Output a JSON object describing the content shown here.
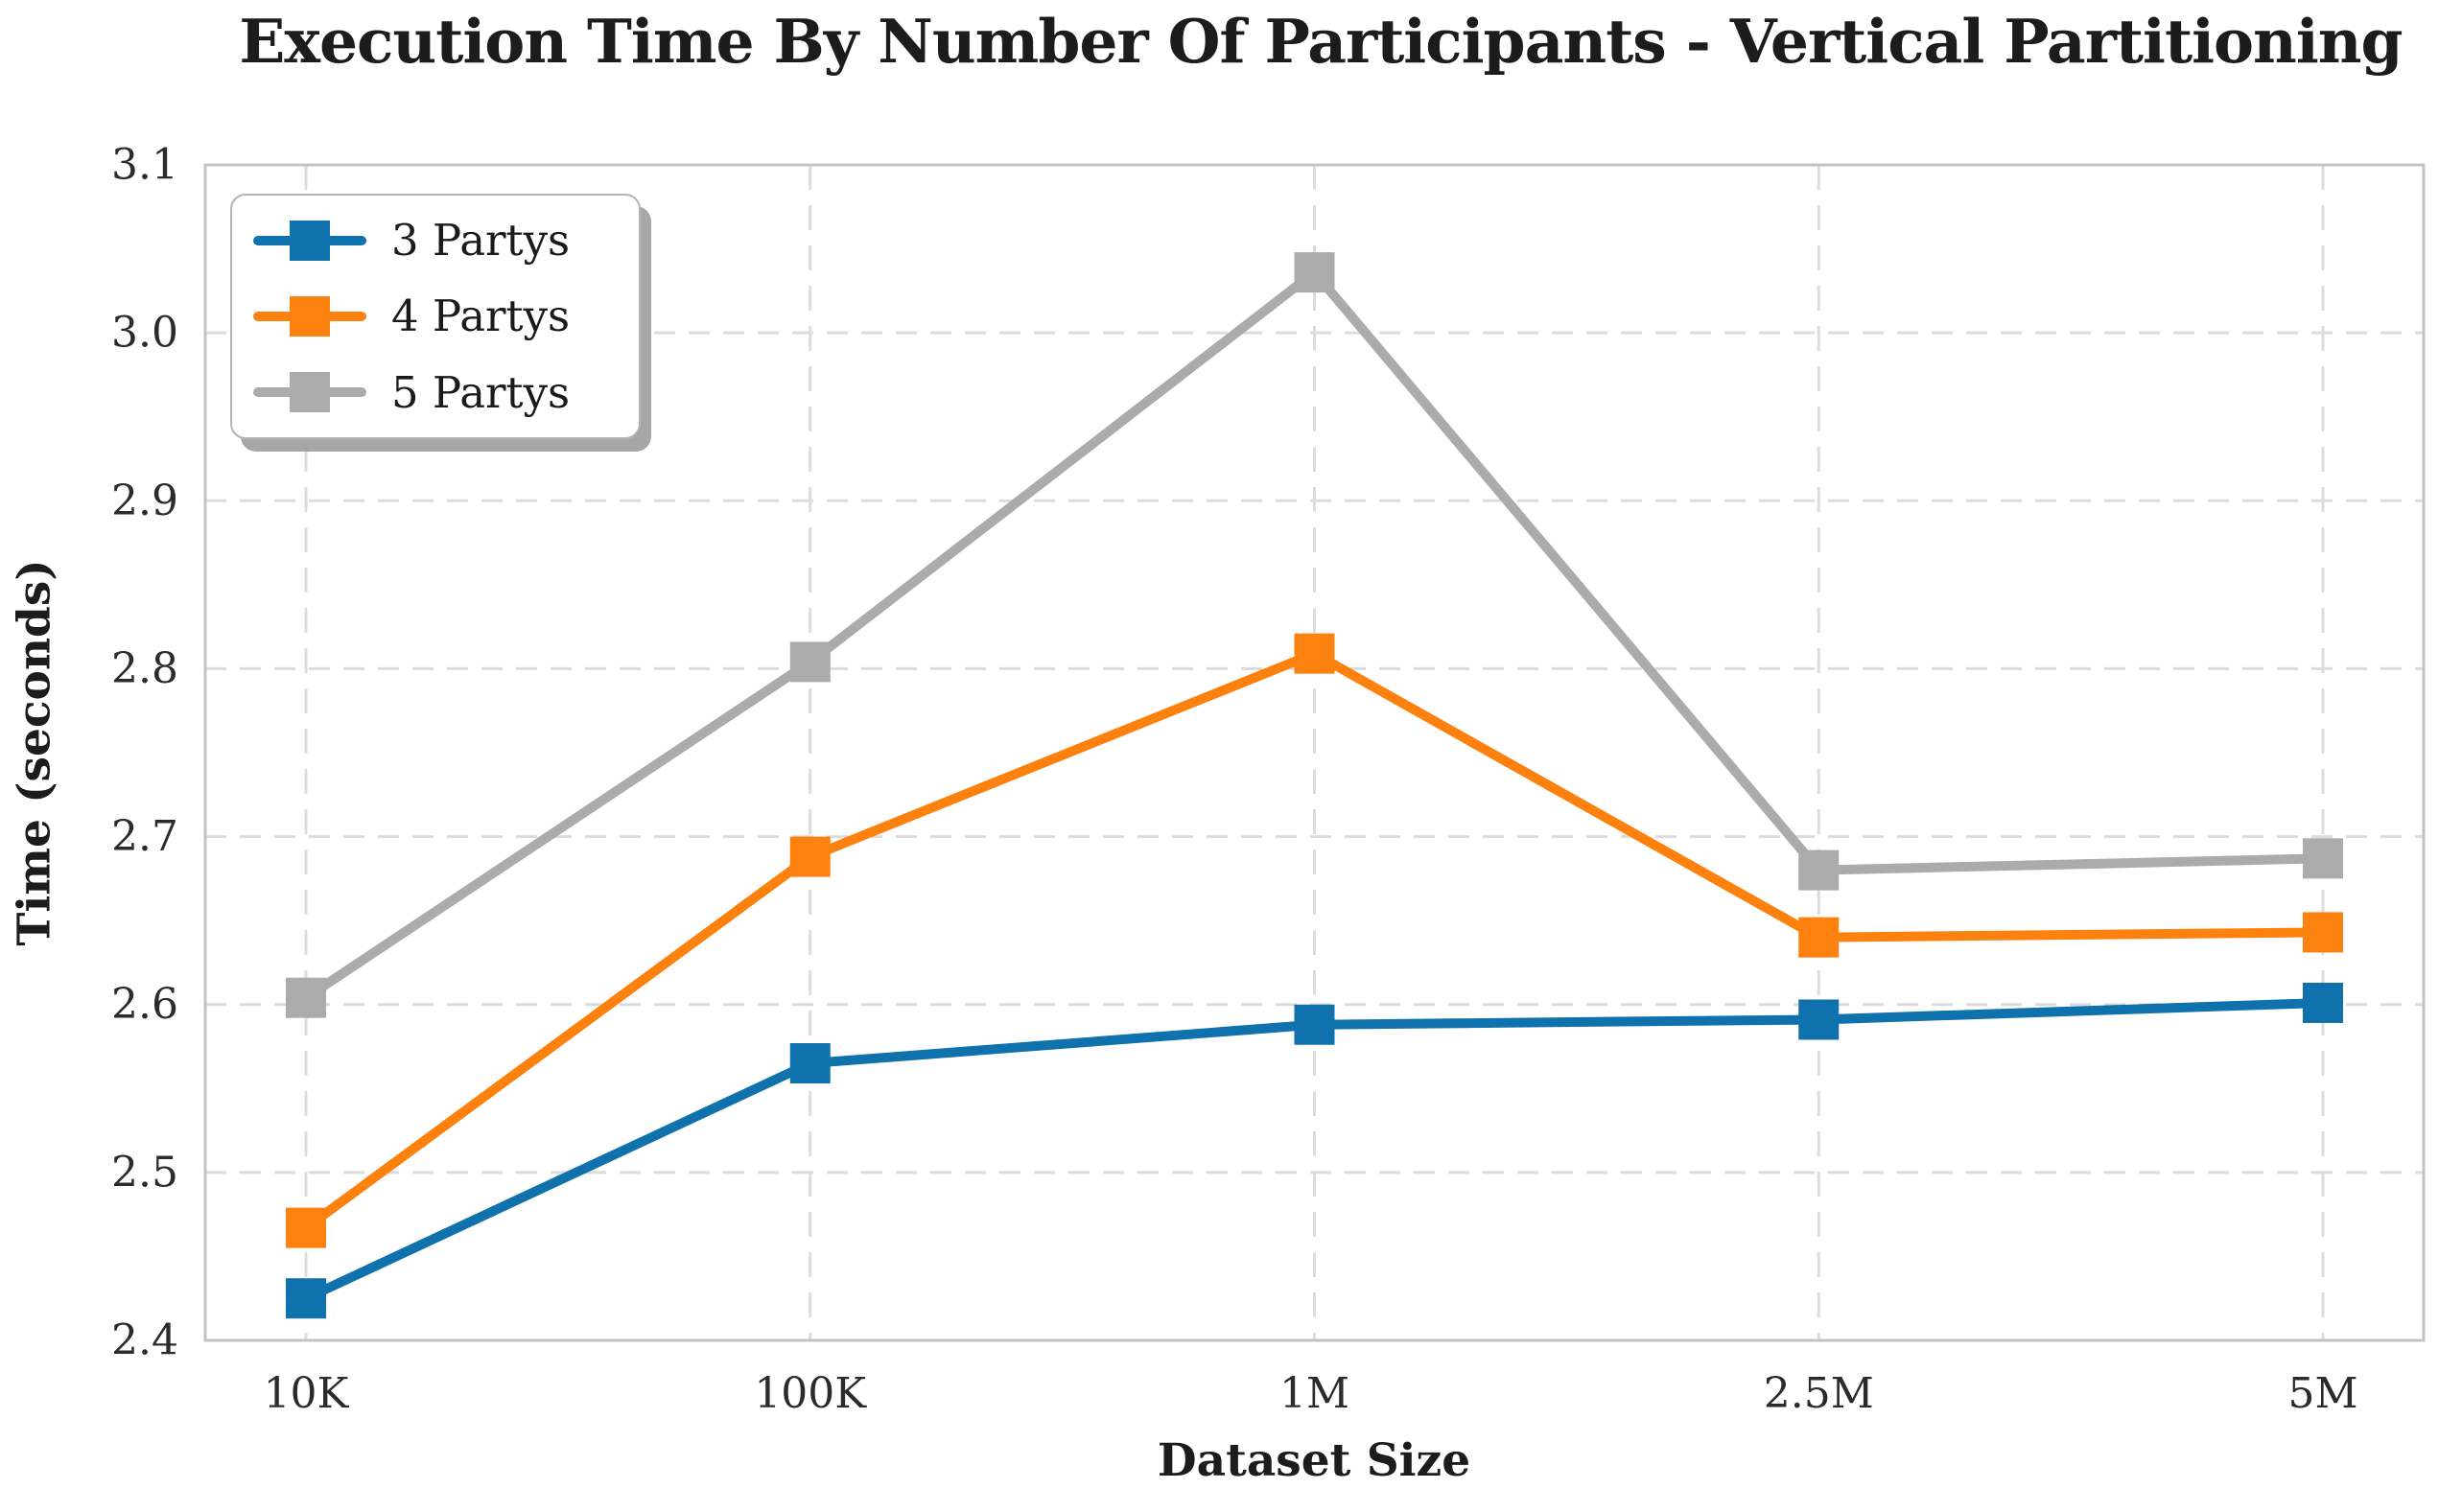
{
  "chart_data": {
    "type": "line",
    "title": "Execution Time By Number Of Participants - Vertical Partitioning",
    "xlabel": "Dataset Size",
    "ylabel": "Time (seconds)",
    "categories": [
      "10K",
      "100K",
      "1M",
      "2.5M",
      "5M"
    ],
    "series": [
      {
        "name": "3 Partys",
        "color": "#0f72ad",
        "values": [
          2.425,
          2.565,
          2.588,
          2.591,
          2.601
        ]
      },
      {
        "name": "4 Partys",
        "color": "#fd810e",
        "values": [
          2.467,
          2.688,
          2.809,
          2.64,
          2.643
        ]
      },
      {
        "name": "5 Partys",
        "color": "#ababab",
        "values": [
          2.604,
          2.804,
          3.036,
          2.68,
          2.687
        ]
      }
    ],
    "ylim": [
      2.4,
      3.1
    ],
    "y_ticks": [
      "2.4",
      "2.5",
      "2.6",
      "2.7",
      "2.8",
      "2.9",
      "3.0",
      "3.1"
    ],
    "marker": "square",
    "grid": "dashed",
    "legend_position": "upper-left"
  },
  "colors": {
    "grid": "#dcdcdc",
    "spine": "#c3c3c3",
    "tick_text": "#2b2b2b",
    "text": "#1c1c1c",
    "background": "#ffffff"
  }
}
